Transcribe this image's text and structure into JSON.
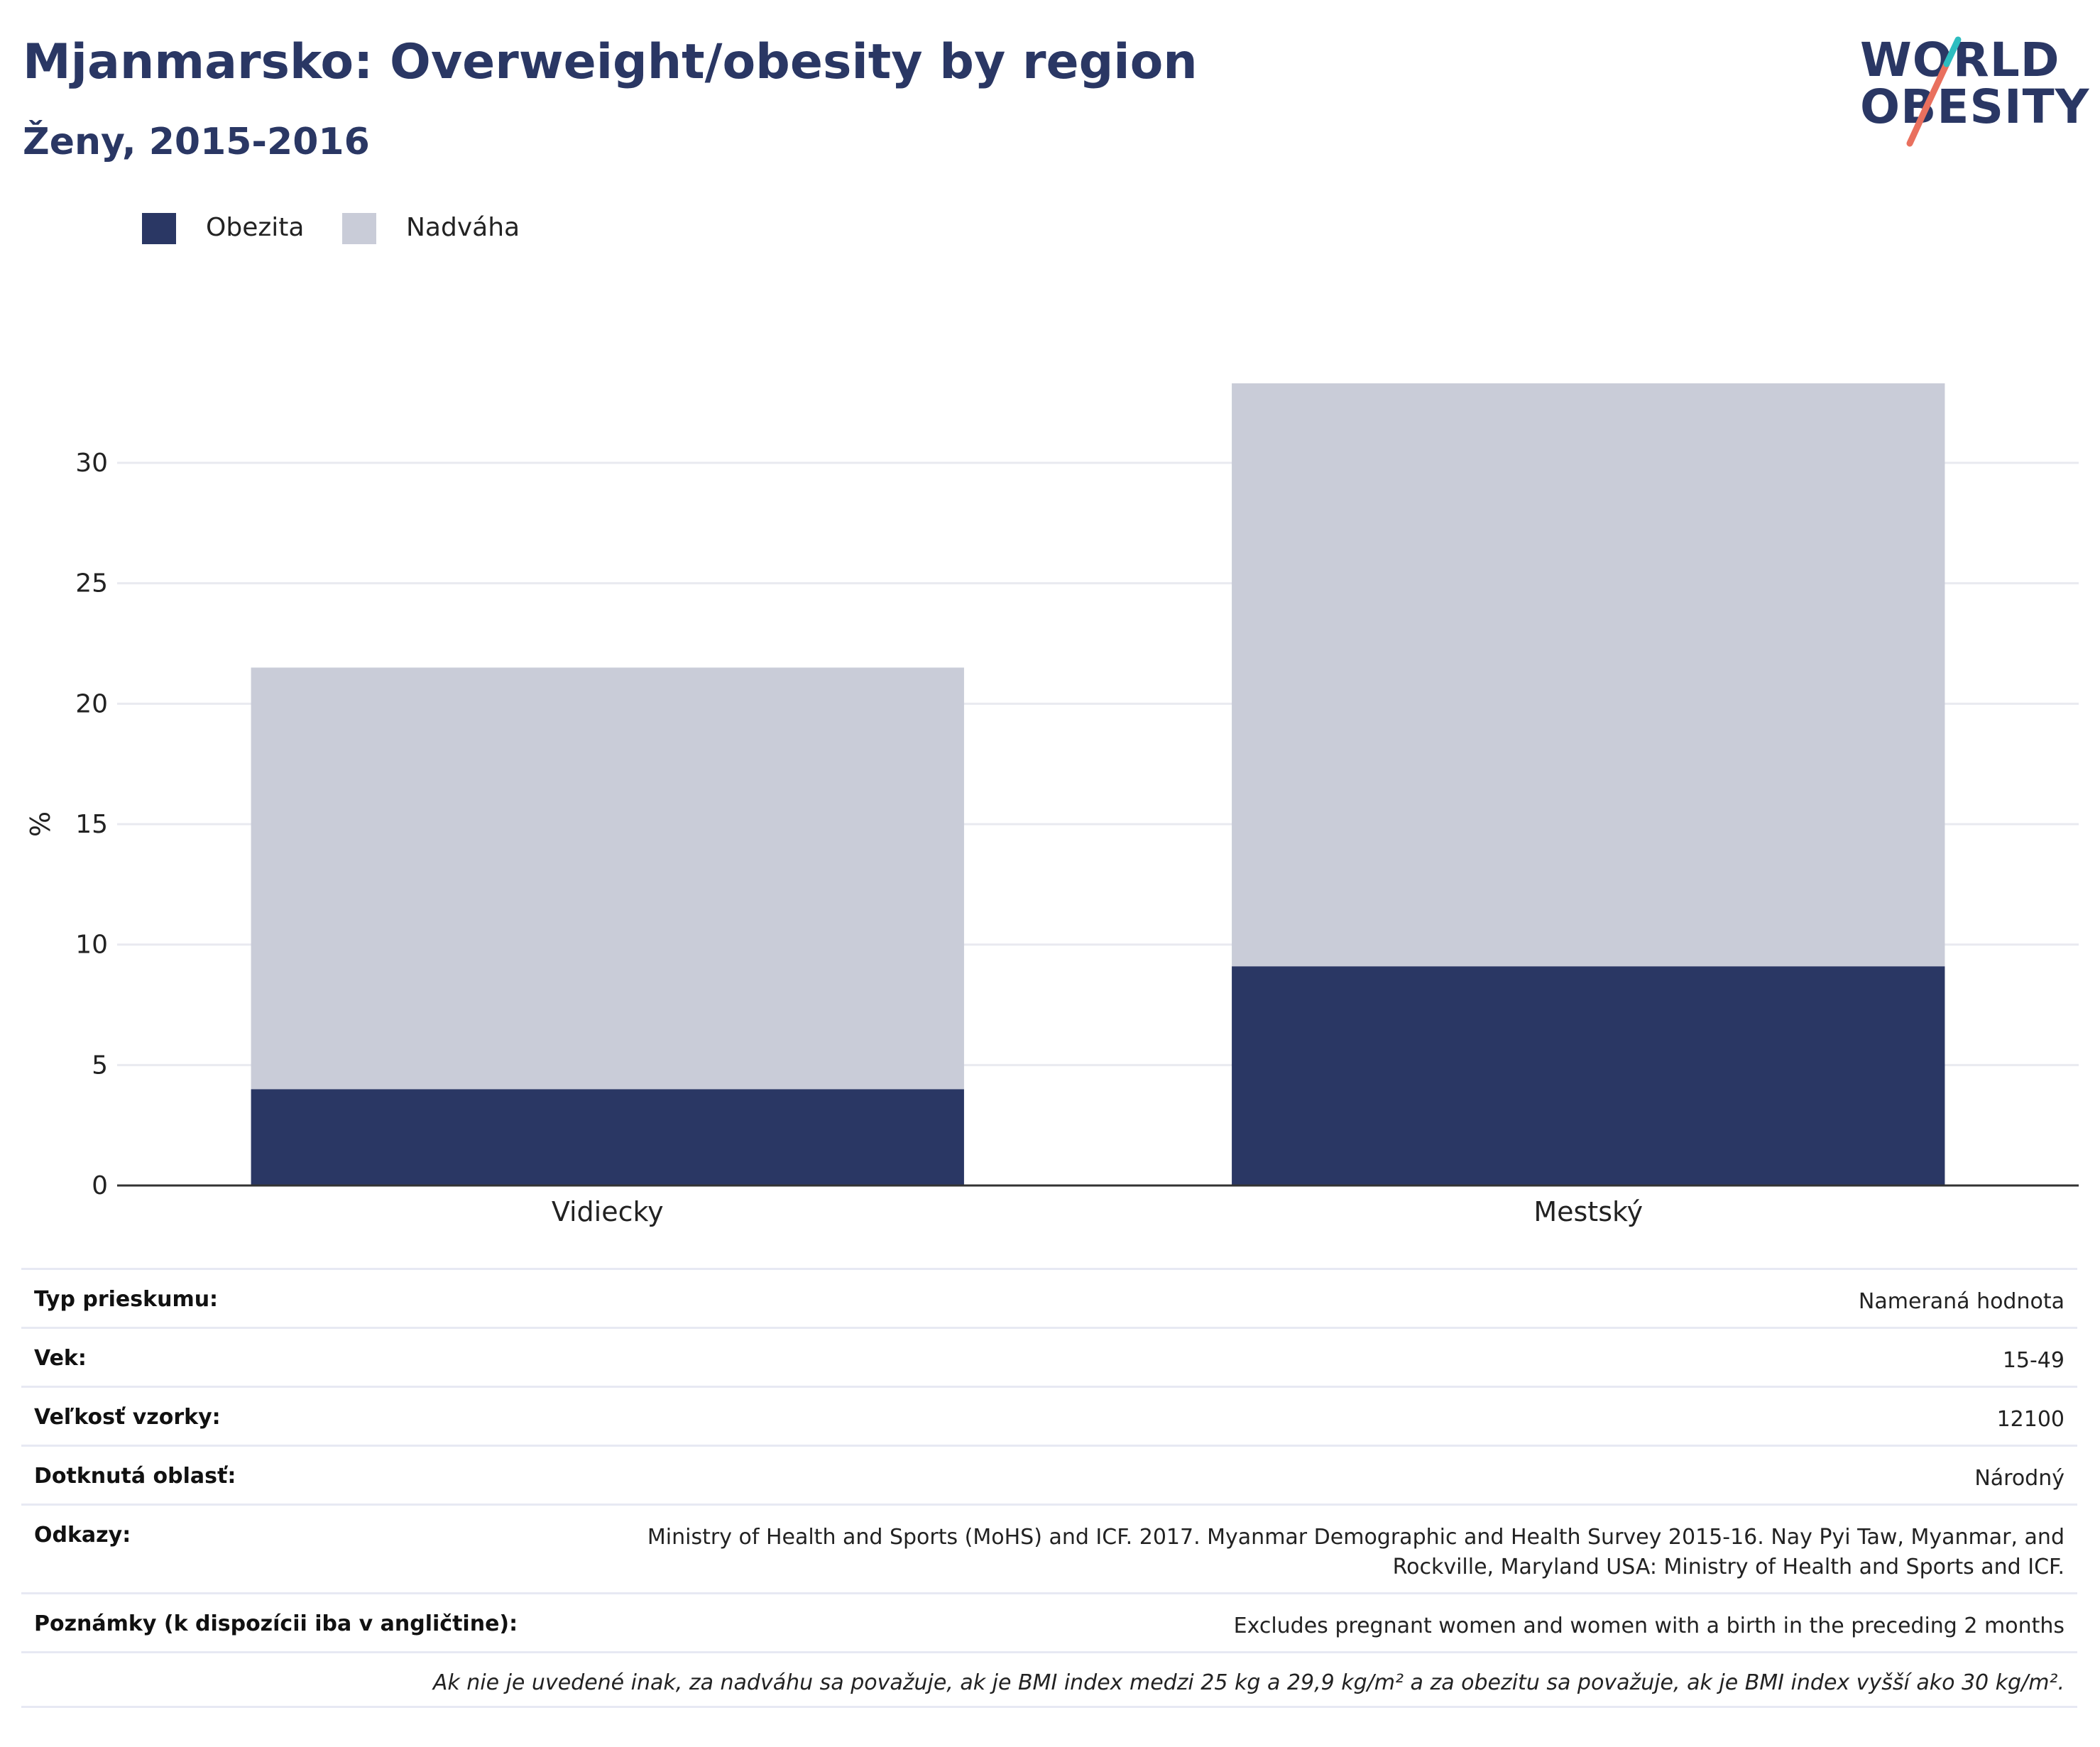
{
  "header": {
    "title": "Mjanmarsko: Overweight/obesity by region",
    "subtitle": "Ženy, 2015-2016",
    "logo_line1": "WORLD",
    "logo_line2": "OBESITY"
  },
  "legend": {
    "obesity_label": "Obezita",
    "overweight_label": "Nadváha"
  },
  "colors": {
    "obesity": "#2a3764",
    "overweight": "#c9ccd8",
    "grid": "#e9eaf0",
    "axis": "#333333",
    "logo_teal": "#2dbdc0",
    "logo_coral": "#e9705e"
  },
  "chart_data": {
    "type": "bar",
    "stacked": true,
    "categories": [
      "Vidiecky",
      "Mestský"
    ],
    "series": [
      {
        "name": "Obezita",
        "values": [
          4.0,
          9.1
        ]
      },
      {
        "name": "Nadváha",
        "values": [
          17.5,
          24.2
        ]
      }
    ],
    "title": "Mjanmarsko: Overweight/obesity by region",
    "subtitle": "Ženy, 2015-2016",
    "xlabel": "",
    "ylabel": "%",
    "ylim": [
      0,
      33.3
    ],
    "yticks": [
      0,
      5,
      10,
      15,
      20,
      25,
      30
    ],
    "grid": true,
    "legend_position": "top-left"
  },
  "meta": {
    "rows": [
      {
        "label": "Typ prieskumu:",
        "value": "Nameraná hodnota"
      },
      {
        "label": "Vek:",
        "value": "15-49"
      },
      {
        "label": "Veľkosť vzorky:",
        "value": "12100"
      },
      {
        "label": "Dotknutá oblasť:",
        "value": "Národný"
      },
      {
        "label": "Odkazy:",
        "value_line1": "Ministry of Health and Sports (MoHS) and ICF. 2017. Myanmar Demographic and Health Survey 2015-16. Nay Pyi Taw, Myanmar, and",
        "value_line2": "Rockville, Maryland USA: Ministry of Health and Sports and ICF."
      },
      {
        "label": "Poznámky (k dispozícii iba v angličtine):",
        "value": "Excludes pregnant women and women with a birth in the preceding 2 months"
      }
    ],
    "footnote": "Ak nie je uvedené inak, za nadváhu sa považuje, ak je BMI index medzi 25 kg a 29,9 kg/m² a za obezitu sa považuje, ak je BMI index vyšší ako 30 kg/m²."
  }
}
